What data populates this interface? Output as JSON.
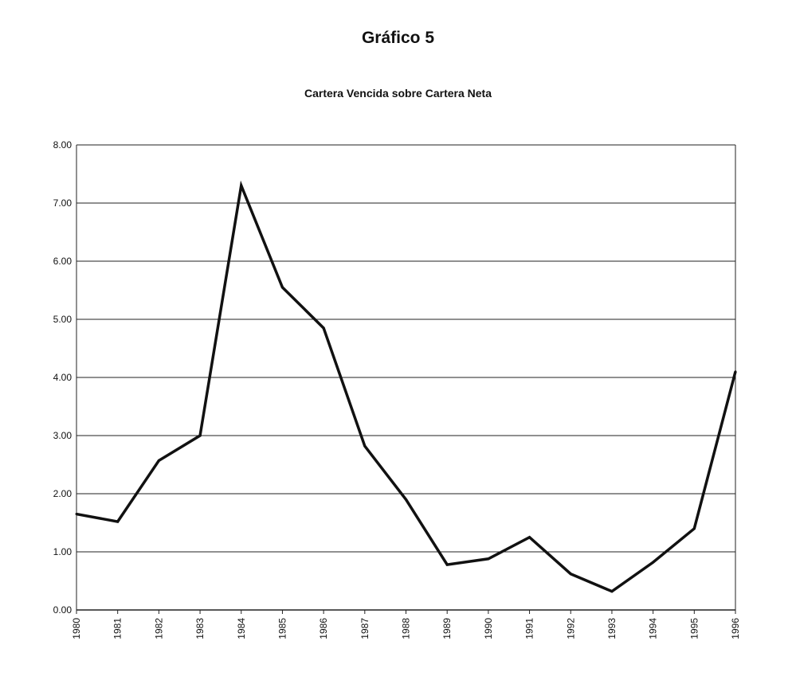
{
  "header": {
    "title": "Gráfico 5",
    "subtitle": "Cartera Vencida sobre Cartera Neta"
  },
  "chart_data": {
    "type": "line",
    "title": "Cartera Vencida sobre Cartera Neta",
    "xlabel": "",
    "ylabel": "",
    "categories": [
      "1980",
      "1981",
      "1982",
      "1983",
      "1984",
      "1985",
      "1986",
      "1987",
      "1988",
      "1989",
      "1990",
      "1991",
      "1992",
      "1993",
      "1994",
      "1995",
      "1996"
    ],
    "values": [
      1.65,
      1.52,
      2.57,
      3.0,
      7.3,
      5.55,
      4.85,
      2.82,
      1.9,
      0.78,
      0.88,
      1.25,
      0.62,
      0.32,
      0.82,
      1.4,
      4.1
    ],
    "y_ticks": [
      "0.00",
      "1.00",
      "2.00",
      "3.00",
      "4.00",
      "5.00",
      "6.00",
      "7.00",
      "8.00"
    ],
    "ylim": [
      0,
      8
    ],
    "grid": true,
    "legend": "none",
    "line_color": "#111111"
  }
}
